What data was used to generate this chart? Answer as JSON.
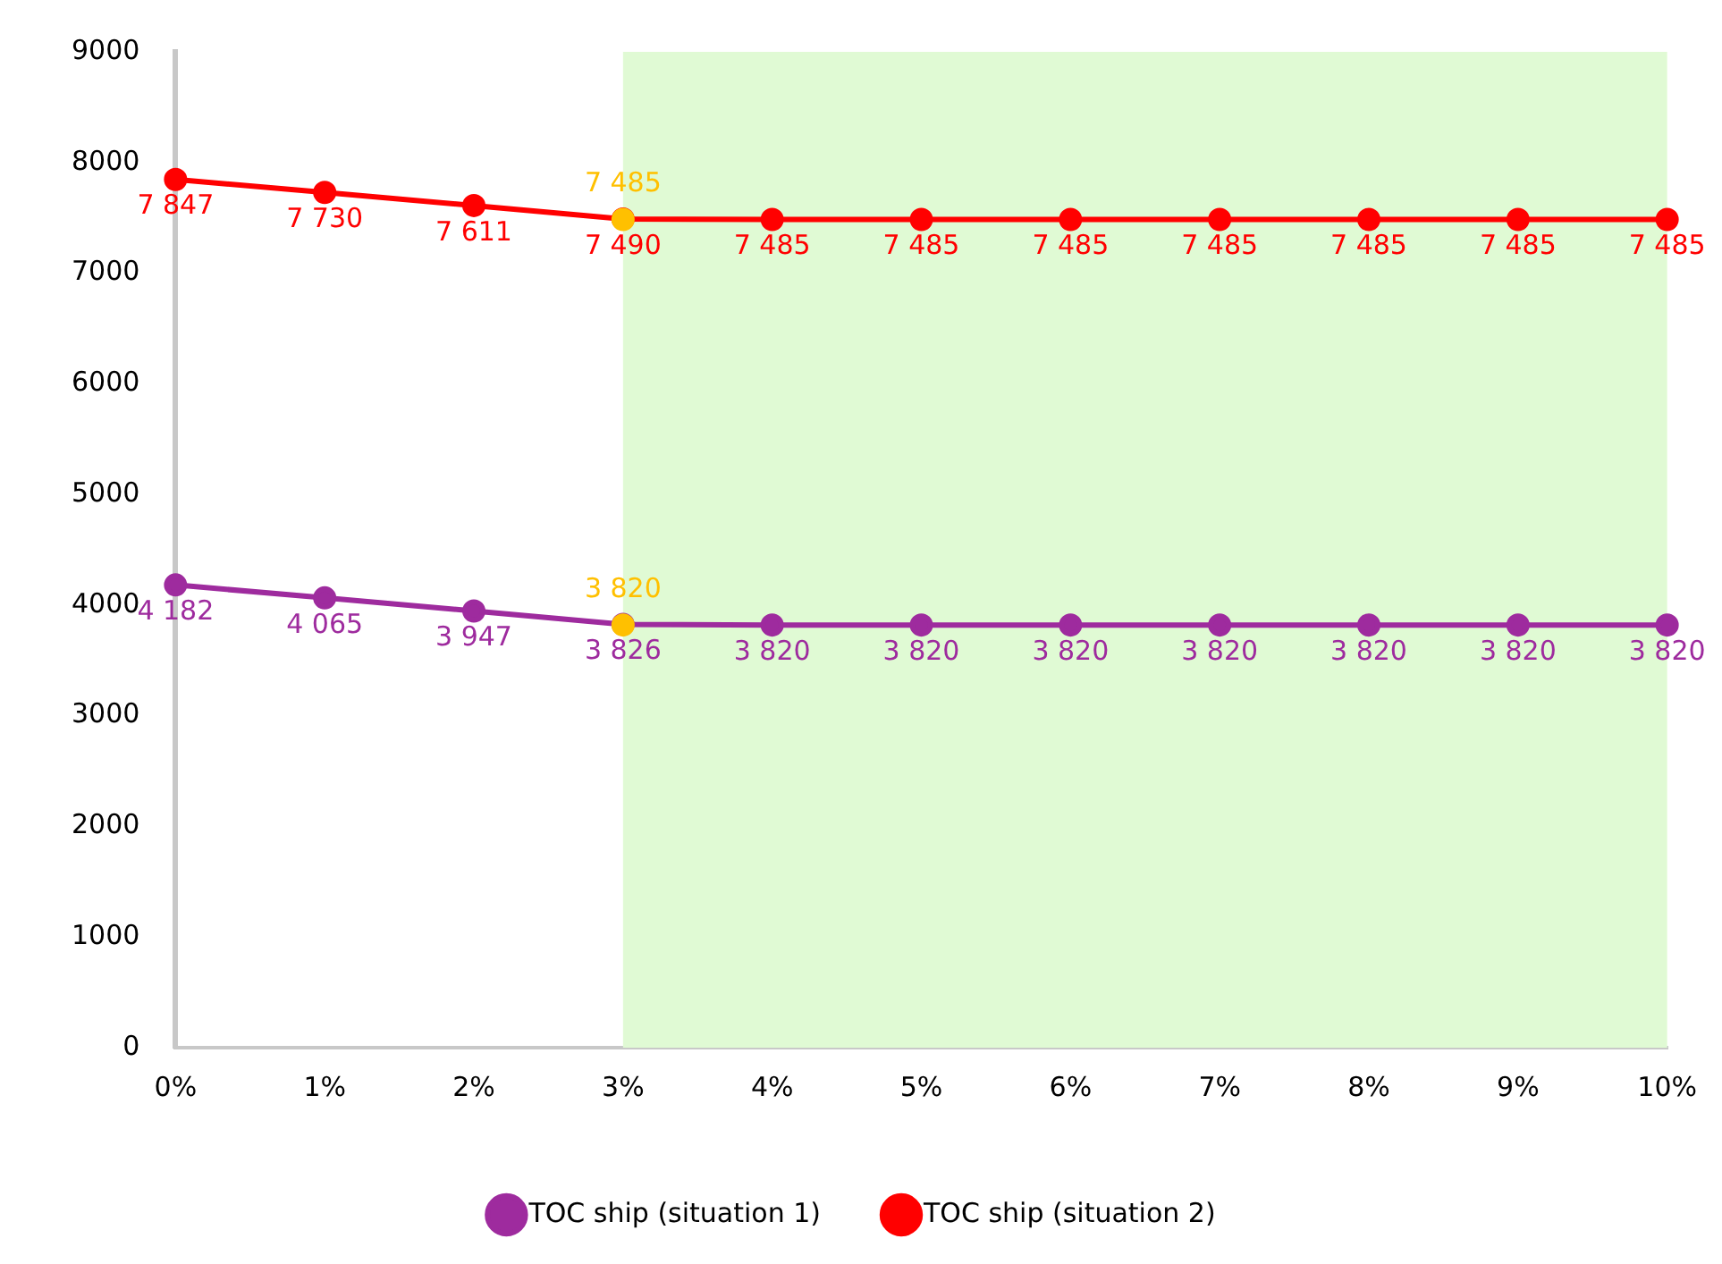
{
  "chart_data": {
    "type": "line",
    "categories": [
      "0%",
      "1%",
      "2%",
      "3%",
      "4%",
      "5%",
      "6%",
      "7%",
      "8%",
      "9%",
      "10%"
    ],
    "ylim": [
      0,
      9000
    ],
    "yticks": [
      0,
      1000,
      2000,
      3000,
      4000,
      5000,
      6000,
      7000,
      8000,
      9000
    ],
    "grid": false,
    "legend": "bottom",
    "marker": "circle",
    "line_style": "solid",
    "bands": [
      {
        "axis": "x",
        "from": "3%",
        "to": "10%",
        "color": "#e0fad4"
      }
    ],
    "series": [
      {
        "name": "TOC ship (situation 1)",
        "color": "#9e2b9e",
        "values": [
          4182,
          4065,
          3947,
          3826,
          3820,
          3820,
          3820,
          3820,
          3820,
          3820,
          3820
        ],
        "value_labels": [
          "4 182",
          "4 065",
          "3 947",
          "3 826",
          "3 820",
          "3 820",
          "3 820",
          "3 820",
          "3 820",
          "3 820",
          "3 820"
        ]
      },
      {
        "name": "TOC ship (situation 2)",
        "color": "#ff0000",
        "values": [
          7847,
          7730,
          7611,
          7490,
          7485,
          7485,
          7485,
          7485,
          7485,
          7485,
          7485
        ],
        "value_labels": [
          "7 847",
          "7 730",
          "7 611",
          "7 490",
          "7 485",
          "7 485",
          "7 485",
          "7 485",
          "7 485",
          "7 485",
          "7 485"
        ]
      },
      {
        "type": "scatter",
        "color": "#ffc000",
        "x": [
          "3%",
          "3%"
        ],
        "values": [
          7485,
          3820
        ],
        "value_labels": [
          "7 485",
          "3 820"
        ]
      }
    ]
  }
}
